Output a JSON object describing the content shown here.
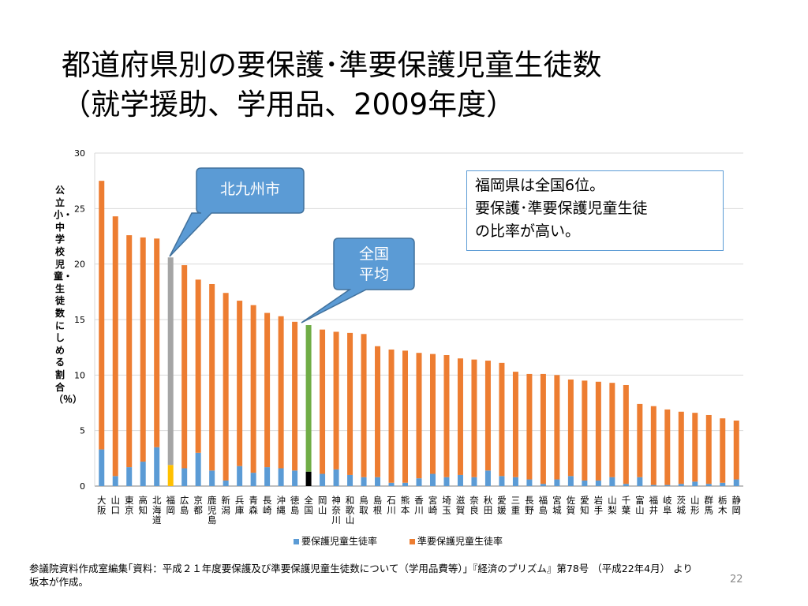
{
  "title": {
    "line1": "都道府県別の要保護･準要保護児童生徒数",
    "line2": "（就学援助、学用品、2009年度）"
  },
  "callouts": {
    "kitakyushu": "北九州市",
    "national_line1": "全国",
    "national_line2": "平均"
  },
  "note": {
    "line1": "福岡県は全国6位。",
    "line2": "要保護･準要保護児童生徒",
    "line3": "の比率が高い。"
  },
  "source": {
    "line1": "参議院資料作成室編集｢資料：平成２１年度要保護及び準要保護児童生徒数について（学用品費等）｣『経済のプリズム』第78号 （平成22年4月） より",
    "line2": "坂本が作成。"
  },
  "page_number": "22",
  "colors": {
    "yohogo": "#5b9bd5",
    "junyohogo": "#ed7d31",
    "fukuoka_yohogo": "#ffc000",
    "fukuoka_junyohogo": "#a5a5a5",
    "national_yohogo": "#000000",
    "national_junyohogo": "#70ad47",
    "callout_fill": "#5b9bd5",
    "callout_stroke": "#41719c"
  },
  "chart_data": {
    "type": "bar",
    "stacked": true,
    "ylabel": "公立小・中学校児童・生徒数にしめる割合（％）",
    "ylim": [
      0,
      30
    ],
    "yticks": [
      0,
      5,
      10,
      15,
      20,
      25,
      30
    ],
    "grid": true,
    "legend_position": "bottom",
    "categories": [
      "大阪",
      "山口",
      "東京",
      "高知",
      "北海道",
      "福岡",
      "広島",
      "京都",
      "鹿児島",
      "新潟",
      "兵庫",
      "青森",
      "長崎",
      "沖縄",
      "徳島",
      "全国",
      "岡山",
      "神奈川",
      "和歌山",
      "鳥取",
      "島根",
      "石川",
      "熊本",
      "香川",
      "宮崎",
      "埼玉",
      "滋賀",
      "奈良",
      "秋田",
      "愛媛",
      "三重",
      "長野",
      "福島",
      "宮城",
      "佐賀",
      "愛知",
      "岩手",
      "山梨",
      "千葉",
      "富山",
      "福井",
      "岐阜",
      "茨城",
      "山形",
      "群馬",
      "栃木",
      "静岡"
    ],
    "series": [
      {
        "name": "要保護児童生徒率",
        "values": [
          3.3,
          0.9,
          1.7,
          2.2,
          3.5,
          1.9,
          1.6,
          3.0,
          1.4,
          0.5,
          1.8,
          1.2,
          1.7,
          1.6,
          1.4,
          1.3,
          1.1,
          1.5,
          1.0,
          0.8,
          0.8,
          0.3,
          0.3,
          0.7,
          1.1,
          0.8,
          1.0,
          0.8,
          1.4,
          0.9,
          0.8,
          0.6,
          0.2,
          0.6,
          0.9,
          0.5,
          0.5,
          0.8,
          0.2,
          0.8,
          0.1,
          0.1,
          0.2,
          0.4,
          0.2,
          0.3,
          0.6
        ]
      },
      {
        "name": "準要保護児童生徒率",
        "values": [
          24.2,
          23.4,
          20.9,
          20.2,
          18.8,
          18.7,
          18.3,
          15.6,
          16.8,
          16.9,
          14.9,
          15.1,
          13.9,
          13.7,
          13.4,
          13.2,
          13.0,
          12.4,
          12.8,
          12.9,
          11.8,
          12.0,
          11.9,
          11.3,
          10.8,
          11.0,
          10.5,
          10.6,
          9.9,
          10.2,
          9.5,
          9.5,
          9.9,
          9.4,
          8.7,
          9.0,
          8.9,
          8.5,
          8.9,
          6.6,
          7.1,
          6.8,
          6.5,
          6.2,
          6.2,
          5.8,
          5.3
        ]
      }
    ]
  }
}
